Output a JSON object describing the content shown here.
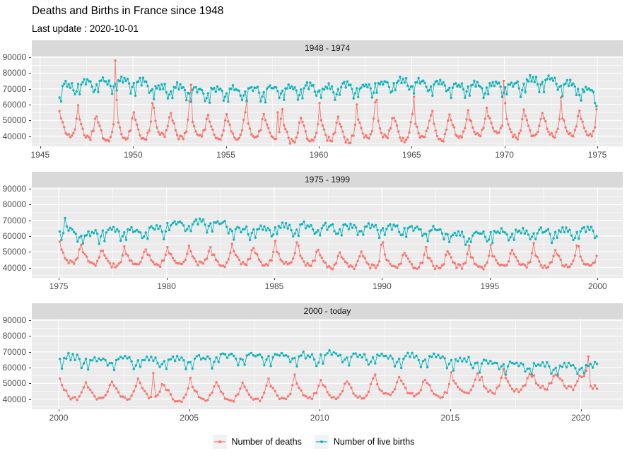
{
  "title": "Deaths and Births in France since 1948",
  "subtitle": "Last update : 2020-10-01",
  "colors": {
    "deaths": "#F8766D",
    "births": "#14B4BA",
    "panel_bg": "#EBEBEB",
    "strip_bg": "#D9D9D9",
    "grid": "#FFFFFF",
    "axis_text": "#4D4D4D",
    "tick_mark": "#333333",
    "legend_key_bg": "#F2F2F2",
    "title_text": "#000000"
  },
  "legend": {
    "position": "bottom",
    "items": [
      {
        "series": "deaths",
        "label": "Number of deaths"
      },
      {
        "series": "births",
        "label": "Number of live births"
      }
    ]
  },
  "chart_data": {
    "type": "line",
    "title": "Deaths and Births in France since 1948",
    "subtitle": "Last update : 2020-10-01",
    "xlabel": "",
    "ylabel": "",
    "grid": true,
    "marker": "point",
    "frequency": "monthly",
    "units": "persons per month",
    "y_ticks": [
      40000,
      50000,
      60000,
      70000,
      80000,
      90000
    ],
    "y_minor_ticks": [
      35000,
      45000,
      55000,
      65000,
      75000,
      85000
    ],
    "ylim": [
      33500,
      91000
    ],
    "series_names": [
      "Number of deaths",
      "Number of live births"
    ],
    "seasonal_profile_thousands": {
      "deaths": [
        6.2,
        3.6,
        2.0,
        0.0,
        -2.0,
        -3.4,
        -3.0,
        -3.5,
        -3.8,
        -1.6,
        -0.4,
        3.6
      ],
      "births": [
        0.5,
        -3.9,
        1.6,
        2.0,
        3.4,
        1.4,
        3.1,
        1.6,
        2.4,
        0.1,
        -3.6,
        -1.4
      ]
    },
    "noise_halfwidth_thousands": {
      "deaths": 1.1,
      "births": 1.4
    },
    "panels": [
      {
        "label": "1948 - 1974",
        "x_ticks": [
          1945,
          1950,
          1955,
          1960,
          1965,
          1970,
          1975
        ],
        "xlim": [
          1944.55,
          1976.37
        ],
        "years_start": 1946,
        "data_start": [
          1946,
          1
        ],
        "data_end": [
          1974,
          12
        ],
        "season_scale": {
          "deaths": 1.6,
          "births": 1.25
        },
        "deaths_annual_mean_thousands": [
          45.4,
          44.8,
          42.7,
          44.5,
          44.5,
          46.0,
          44.6,
          45.5,
          43.2,
          43.8,
          45.0,
          44.3,
          41.8,
          42.4,
          43.3,
          41.8,
          44.8,
          45.8,
          42.7,
          45.0,
          43.7,
          44.7,
          45.7,
          47.5,
          45.0,
          46.1,
          45.7,
          46.3,
          45.8
        ],
        "births_annual_mean_thousands": [
          70.0,
          71.8,
          72.0,
          72.5,
          71.8,
          68.8,
          68.5,
          67.0,
          67.5,
          66.8,
          67.2,
          67.7,
          67.6,
          69.1,
          68.3,
          69.8,
          69.3,
          71.5,
          73.1,
          72.1,
          71.9,
          70.0,
          69.6,
          70.2,
          70.8,
          73.4,
          73.1,
          71.4,
          66.8
        ],
        "deaths_spikes": [
          [
            1947,
            1,
            59.5
          ],
          [
            1949,
            1,
            88
          ],
          [
            1949,
            2,
            63
          ],
          [
            1951,
            1,
            61
          ],
          [
            1951,
            2,
            58
          ],
          [
            1953,
            1,
            62
          ],
          [
            1953,
            2,
            72.5
          ],
          [
            1956,
            2,
            62
          ],
          [
            1957,
            10,
            55
          ],
          [
            1958,
            1,
            57
          ],
          [
            1960,
            1,
            61
          ],
          [
            1962,
            1,
            60
          ],
          [
            1963,
            1,
            61.5
          ],
          [
            1963,
            2,
            63
          ],
          [
            1965,
            2,
            65
          ],
          [
            1966,
            2,
            56
          ],
          [
            1968,
            1,
            56.5
          ],
          [
            1969,
            1,
            58
          ],
          [
            1969,
            12,
            75
          ],
          [
            1970,
            1,
            61
          ],
          [
            1973,
            1,
            64.5
          ],
          [
            1974,
            12,
            57
          ]
        ],
        "births_spikes": [
          [
            1946,
            1,
            64.5
          ],
          [
            1946,
            2,
            62
          ],
          [
            1974,
            11,
            61
          ],
          [
            1974,
            12,
            59
          ]
        ]
      },
      {
        "label": "1975 - 1999",
        "x_ticks": [
          1975,
          1980,
          1985,
          1990,
          1995,
          2000
        ],
        "xlim": [
          1973.75,
          2001.17
        ],
        "years_start": 1975,
        "data_start": [
          1975,
          1
        ],
        "data_end": [
          1999,
          12
        ],
        "season_scale": {
          "deaths": 1.05,
          "births": 1.0
        },
        "deaths_annual_mean_thousands": [
          46.7,
          46.2,
          44.7,
          45.6,
          45.2,
          45.6,
          46.0,
          45.2,
          46.5,
          45.2,
          46.0,
          45.6,
          44.0,
          43.8,
          44.1,
          43.8,
          43.8,
          43.5,
          44.3,
          43.3,
          44.4,
          44.7,
          44.1,
          44.5,
          44.8
        ],
        "births_annual_mean_thousands": [
          61.5,
          60.0,
          62.0,
          61.4,
          63.0,
          66.6,
          66.9,
          66.3,
          62.4,
          63.3,
          64.0,
          64.8,
          63.9,
          64.2,
          63.7,
          63.5,
          63.2,
          61.9,
          59.3,
          59.2,
          60.8,
          61.2,
          60.6,
          61.5,
          62.1
        ],
        "deaths_spikes": [
          [
            1975,
            1,
            56.5
          ],
          [
            1976,
            1,
            54.5
          ],
          [
            1978,
            1,
            53.5
          ],
          [
            1980,
            1,
            53
          ],
          [
            1981,
            1,
            54
          ],
          [
            1982,
            1,
            53
          ],
          [
            1983,
            1,
            55
          ],
          [
            1985,
            1,
            57
          ],
          [
            1986,
            1,
            56
          ],
          [
            1986,
            2,
            54
          ],
          [
            1989,
            12,
            54.5
          ],
          [
            1990,
            1,
            56
          ],
          [
            1992,
            1,
            53
          ],
          [
            1994,
            1,
            54
          ],
          [
            1995,
            1,
            54.5
          ],
          [
            1997,
            1,
            55.5
          ],
          [
            1999,
            1,
            54
          ],
          [
            1999,
            2,
            53.5
          ]
        ],
        "births_spikes": [
          [
            1975,
            4,
            71.5
          ],
          [
            1975,
            11,
            56.5
          ]
        ]
      },
      {
        "label": "2000 - today",
        "x_ticks": [
          2000,
          2005,
          2010,
          2015,
          2020
        ],
        "xlim": [
          1998.97,
          2021.61
        ],
        "years_start": 2000,
        "data_start": [
          2000,
          1
        ],
        "data_end": [
          2020,
          8
        ],
        "season_scale": {
          "deaths": 1.15,
          "births": 1.0
        },
        "deaths_annual_mean_thousands": [
          44.3,
          44.3,
          44.6,
          45.2,
          42.4,
          44.0,
          43.0,
          43.4,
          44.3,
          44.8,
          45.0,
          44.6,
          46.6,
          46.5,
          45.6,
          48.4,
          48.4,
          49.5,
          50.8,
          51.0,
          51.5
        ],
        "births_annual_mean_thousands": [
          64.6,
          63.9,
          63.2,
          63.2,
          63.8,
          64.2,
          66.2,
          65.3,
          66.0,
          65.5,
          66.5,
          65.8,
          65.5,
          64.9,
          64.6,
          63.2,
          61.9,
          60.6,
          59.8,
          59.3,
          59.5
        ],
        "deaths_spikes": [
          [
            2000,
            1,
            53
          ],
          [
            2003,
            1,
            53
          ],
          [
            2003,
            8,
            56.5
          ],
          [
            2005,
            1,
            53.5
          ],
          [
            2008,
            1,
            53
          ],
          [
            2009,
            1,
            55.5
          ],
          [
            2012,
            2,
            55.5
          ],
          [
            2013,
            1,
            54
          ],
          [
            2015,
            1,
            57
          ],
          [
            2016,
            3,
            54
          ],
          [
            2017,
            1,
            59
          ],
          [
            2018,
            1,
            56
          ],
          [
            2018,
            3,
            55
          ],
          [
            2019,
            1,
            55.5
          ],
          [
            2020,
            1,
            54
          ],
          [
            2020,
            3,
            58
          ],
          [
            2020,
            4,
            67
          ]
        ],
        "births_spikes": []
      }
    ]
  }
}
